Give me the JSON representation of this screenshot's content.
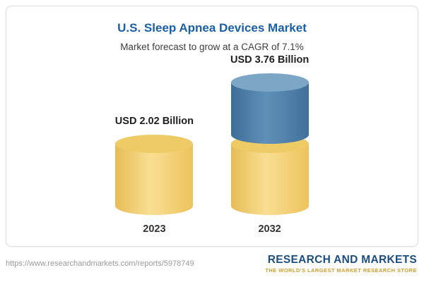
{
  "header": {
    "title": "U.S. Sleep Apnea Devices Market",
    "subtitle": "Market forecast to grow at a CAGR of 7.1%"
  },
  "chart_data": {
    "type": "bar",
    "title": "U.S. Sleep Apnea Devices Market",
    "subtitle": "Market forecast to grow at a CAGR of 7.1%",
    "categories": [
      "2023",
      "2032"
    ],
    "values": [
      2.02,
      3.76
    ],
    "value_labels": [
      "USD 2.02 Billion",
      "USD 3.76 Billion"
    ],
    "unit": "USD Billion",
    "cagr": "7.1%",
    "ylim": [
      0,
      4
    ],
    "legend_position": "none",
    "grid": false,
    "notes": "3D cylinder bars; 2032 bar shows 2023 base level in yellow with growth portion stacked in blue",
    "colors": {
      "base_segment": "#f3d279",
      "growth_segment": "#4a7aa3",
      "title_text": "#1a5fa6"
    }
  },
  "footer": {
    "url": "https://www.researchandmarkets.com/reports/5978749",
    "logo_main": "RESEARCH AND MARKETS",
    "logo_tagline": "THE WORLD'S LARGEST MARKET RESEARCH STORE"
  }
}
